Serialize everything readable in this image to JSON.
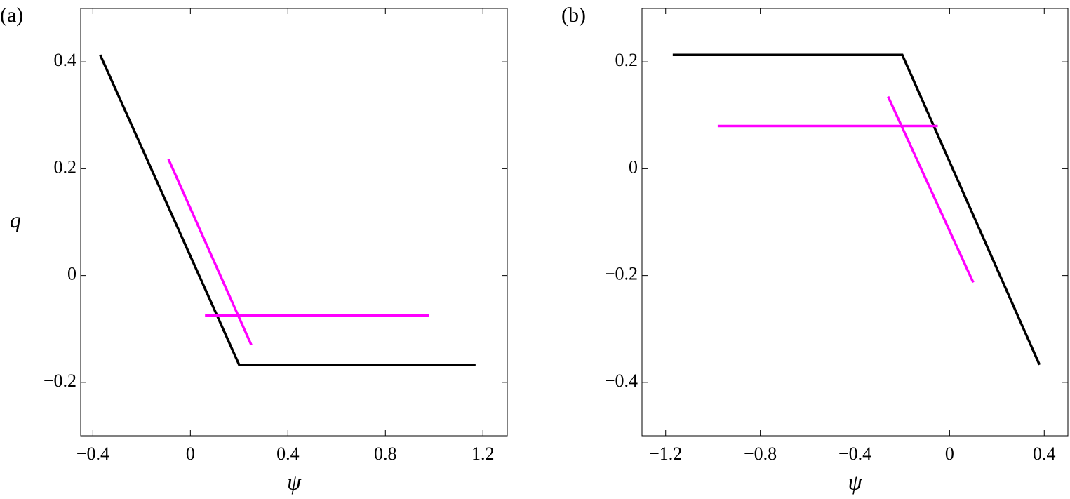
{
  "chart_data": [
    {
      "type": "line",
      "title": "(a)",
      "xlabel": "ψ",
      "ylabel": "q",
      "xlim": [
        -0.45,
        1.3
      ],
      "ylim": [
        -0.3,
        0.5
      ],
      "xticks": [
        {
          "value": -0.4,
          "label": "−0.4"
        },
        0,
        0.4,
        0.8,
        1.2
      ],
      "yticks": [
        {
          "value": -0.2,
          "label": "−0.2"
        },
        0,
        0.2,
        0.4
      ],
      "series": [
        {
          "color": "#000000",
          "x": [
            -0.37,
            0.2,
            1.17
          ],
          "values": [
            0.413,
            -0.167,
            -0.167
          ]
        },
        {
          "color": "#ff00ff",
          "x": [
            -0.09,
            0.25
          ],
          "values": [
            0.218,
            -0.13
          ]
        },
        {
          "color": "#ff00ff",
          "x": [
            0.06,
            0.98
          ],
          "values": [
            -0.075,
            -0.075
          ]
        }
      ]
    },
    {
      "type": "line",
      "title": "(b)",
      "xlabel": "ψ",
      "xlim": [
        -1.3,
        0.5
      ],
      "ylim": [
        -0.5,
        0.3
      ],
      "xticks": [
        {
          "value": -1.2,
          "label": "−1.2"
        },
        {
          "value": -0.8,
          "label": "−0.8"
        },
        {
          "value": -0.4,
          "label": "−0.4"
        },
        0,
        0.4
      ],
      "yticks": [
        {
          "value": -0.4,
          "label": "−0.4"
        },
        {
          "value": -0.2,
          "label": "−0.2"
        },
        0,
        0.2
      ],
      "series": [
        {
          "color": "#000000",
          "x": [
            -1.17,
            -0.2,
            0.38
          ],
          "values": [
            0.213,
            0.213,
            -0.367
          ]
        },
        {
          "color": "#ff00ff",
          "x": [
            -0.26,
            0.1
          ],
          "values": [
            0.135,
            -0.213
          ]
        },
        {
          "color": "#ff00ff",
          "x": [
            -0.98,
            -0.05
          ],
          "values": [
            0.08,
            0.08
          ]
        }
      ]
    }
  ]
}
